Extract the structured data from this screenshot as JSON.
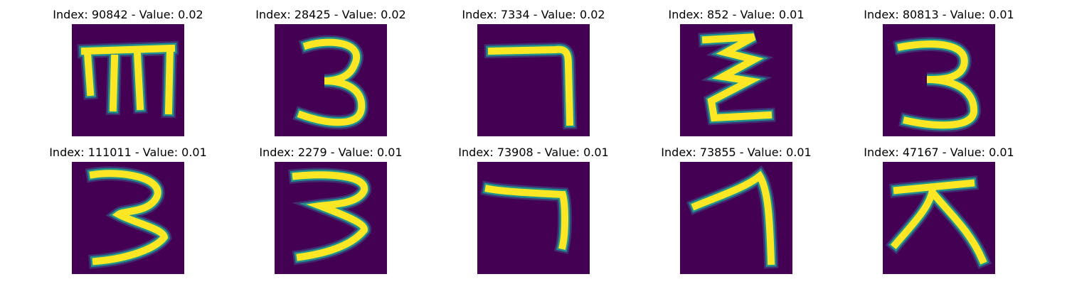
{
  "colors": {
    "background": "#440154",
    "stroke_core": "#fde725",
    "stroke_mid": "#21918c",
    "stroke_edge": "#3b528b"
  },
  "panels": [
    {
      "title": "Index: 90842 - Value: 0.02",
      "glyph": "m-shape"
    },
    {
      "title": "Index: 28425 - Value: 0.02",
      "glyph": "3"
    },
    {
      "title": "Index: 7334 - Value: 0.02",
      "glyph": "7"
    },
    {
      "title": "Index: 852 - Value: 0.01",
      "glyph": "zigzag"
    },
    {
      "title": "Index: 80813 - Value: 0.01",
      "glyph": "3"
    },
    {
      "title": "Index: 111011 - Value: 0.01",
      "glyph": "3"
    },
    {
      "title": "Index: 2279 - Value: 0.01",
      "glyph": "3"
    },
    {
      "title": "Index: 73908 - Value: 0.01",
      "glyph": "7"
    },
    {
      "title": "Index: 73855 - Value: 0.01",
      "glyph": "1"
    },
    {
      "title": "Index: 47167 - Value: 0.01",
      "glyph": "cross"
    }
  ]
}
